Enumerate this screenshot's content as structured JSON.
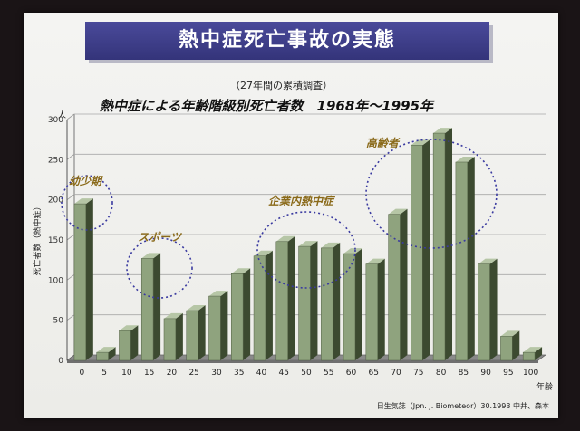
{
  "slide": {
    "title": "熱中症死亡事故の実態",
    "subtitle": "（27年間の累積調査）",
    "source": "日生気誌（Jpn. J. Biometeor）30.1993 中井、森本"
  },
  "chart_data": {
    "type": "bar",
    "title": "熱中症による年齢階級別死亡者数　1968年～1995年",
    "ylabel": "死亡者数（熱中症）",
    "xlabel": "年齢",
    "y_unit": "人",
    "ylim": [
      0,
      300
    ],
    "yticks": [
      "0",
      "50",
      "100",
      "150",
      "200",
      "250",
      "300"
    ],
    "categories": [
      "0",
      "5",
      "10",
      "15",
      "20",
      "25",
      "30",
      "35",
      "40",
      "45",
      "50",
      "55",
      "60",
      "65",
      "70",
      "75",
      "80",
      "85",
      "90",
      "95",
      "100"
    ],
    "values": [
      195,
      10,
      37,
      127,
      52,
      62,
      80,
      108,
      130,
      148,
      142,
      140,
      133,
      120,
      182,
      268,
      283,
      247,
      120,
      30,
      10
    ],
    "bar_color": "#8fa37e",
    "grid": true,
    "annotations": [
      {
        "label": "幼少期"
      },
      {
        "label": "スポーツ"
      },
      {
        "label": "企業内熱中症"
      },
      {
        "label": "高齢者"
      }
    ]
  }
}
